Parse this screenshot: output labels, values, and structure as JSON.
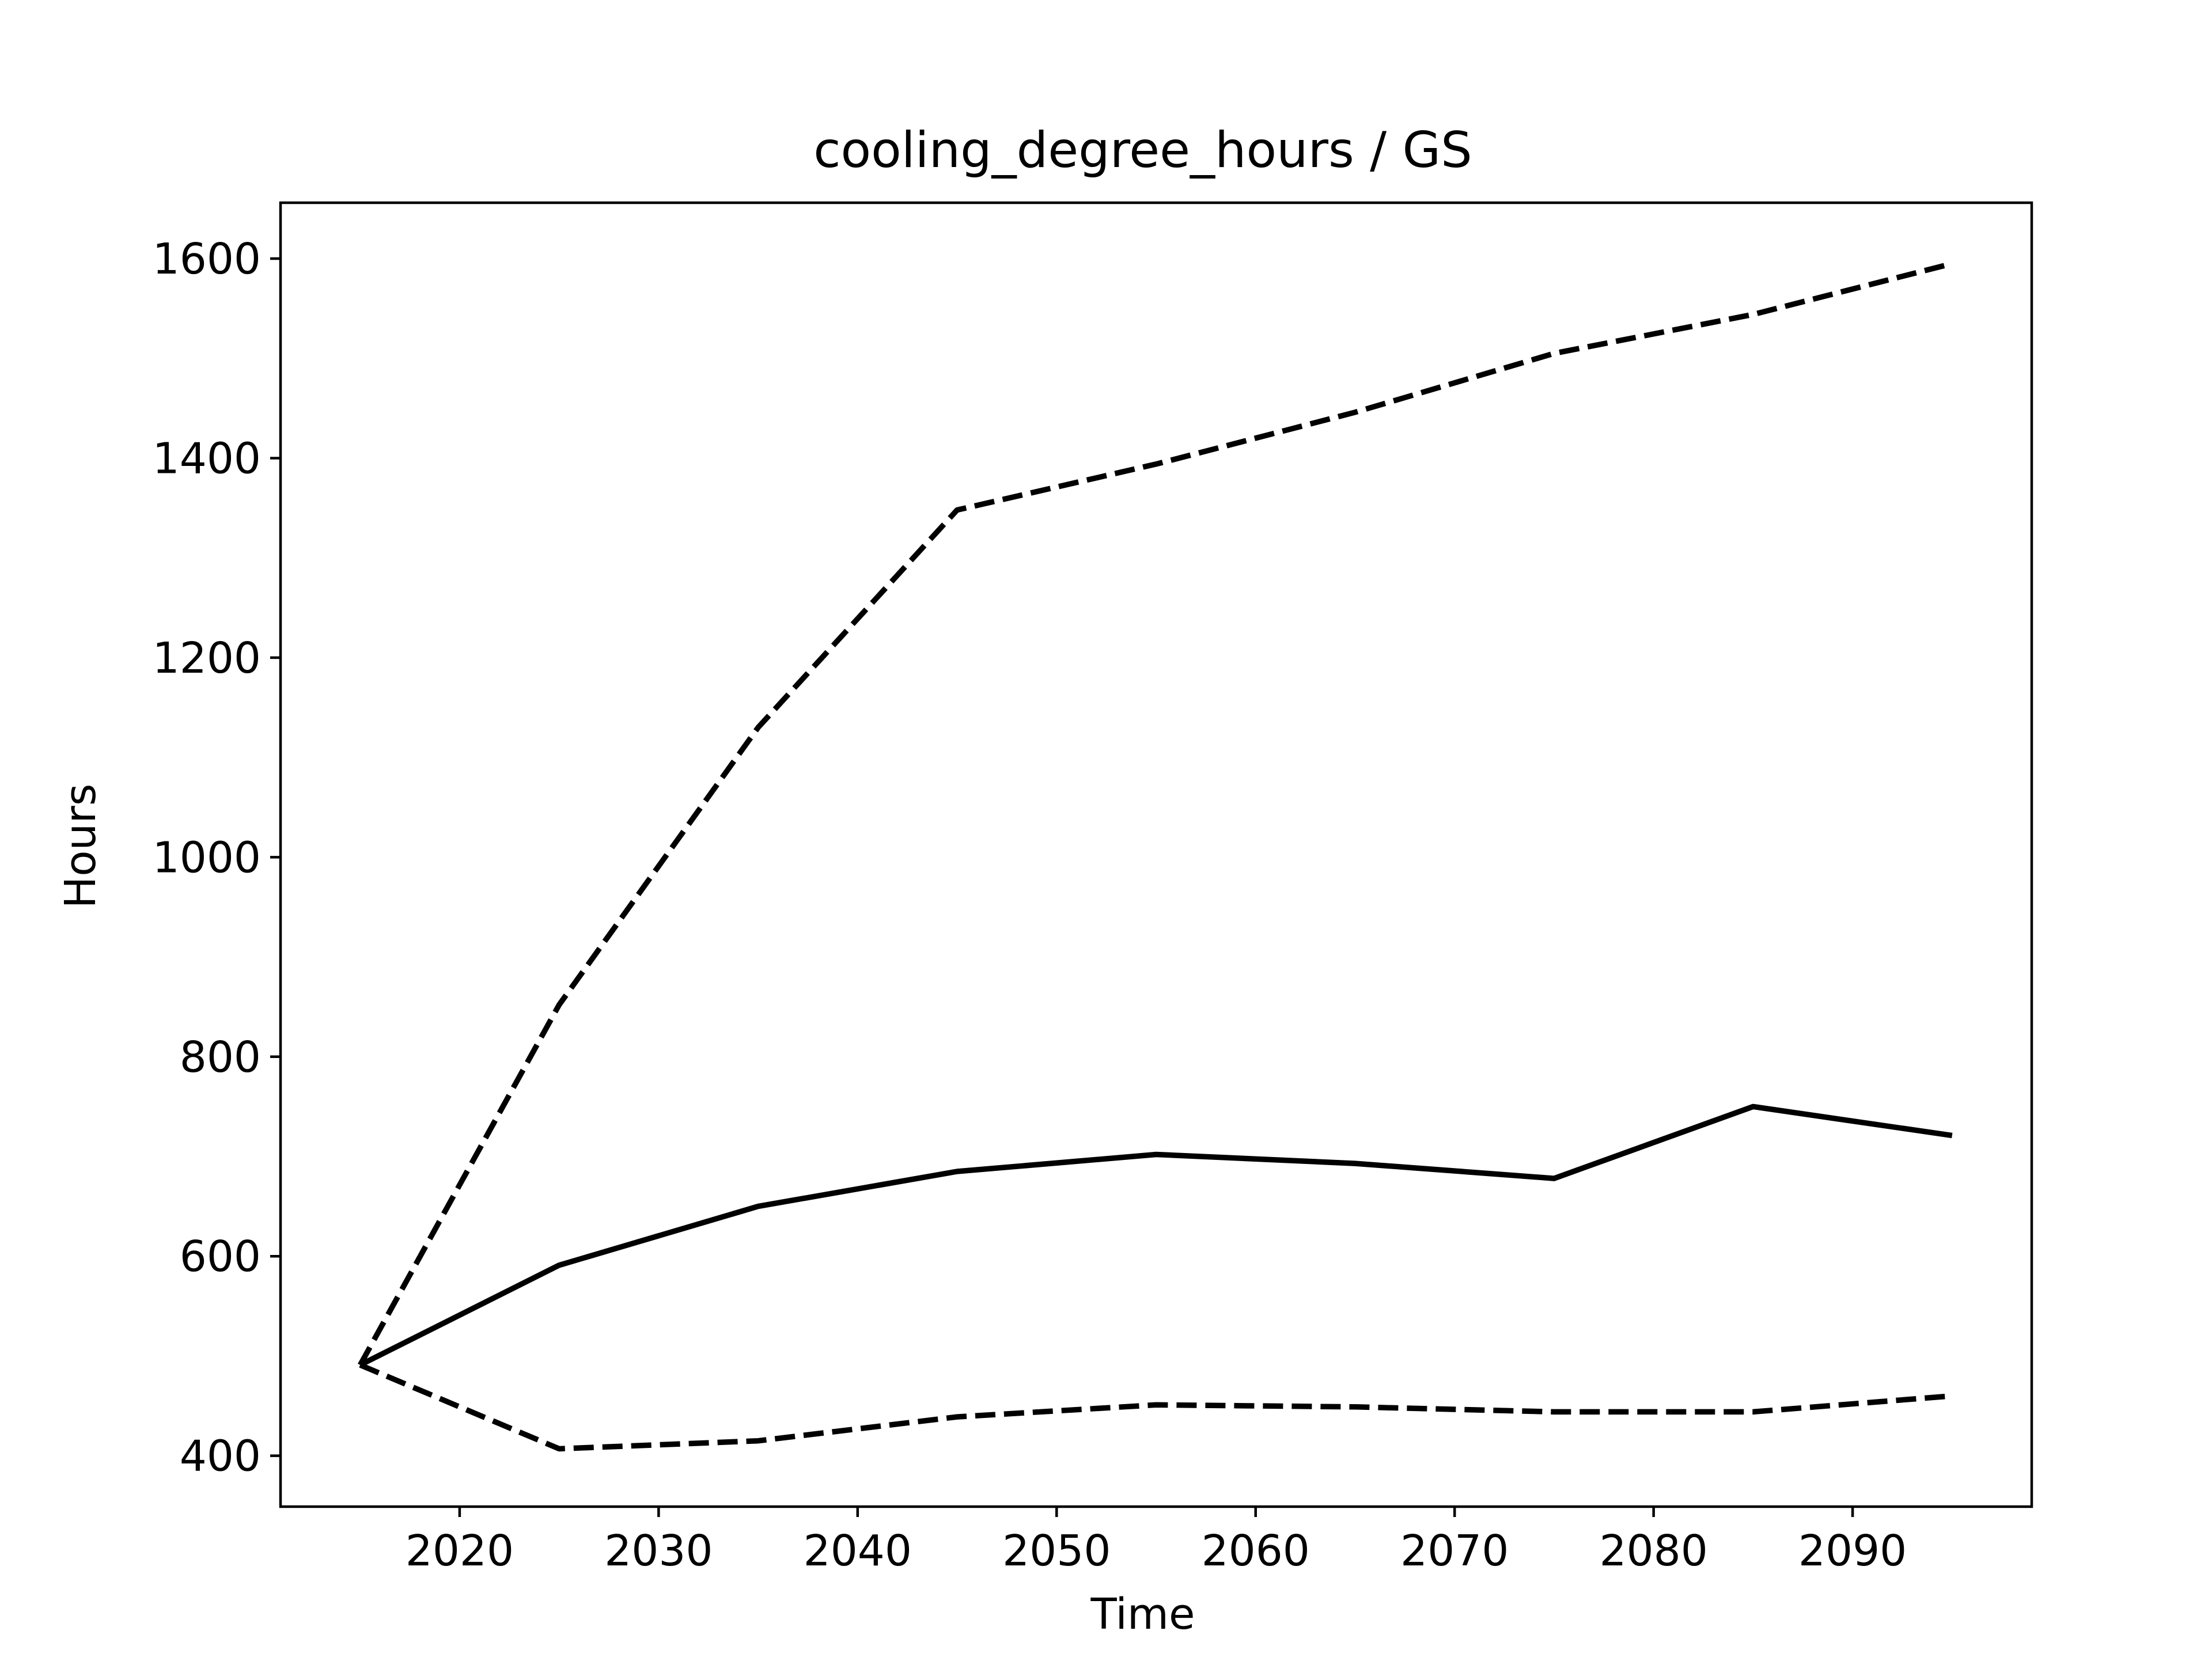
{
  "chart_data": {
    "type": "line",
    "title": "cooling_degree_hours / GS",
    "xlabel": "Time",
    "ylabel": "Hours",
    "x": [
      2015,
      2025,
      2035,
      2045,
      2055,
      2065,
      2075,
      2085,
      2095
    ],
    "xlim": [
      2011,
      2099
    ],
    "ylim": [
      349,
      1656
    ],
    "xticks": [
      2020,
      2030,
      2040,
      2050,
      2060,
      2070,
      2080,
      2090
    ],
    "yticks": [
      400,
      600,
      800,
      1000,
      1200,
      1400,
      1600
    ],
    "grid": false,
    "series": [
      {
        "style": "solid",
        "color": "#000000",
        "values": [
          491,
          591,
          650,
          685,
          702,
          693,
          678,
          750,
          721
        ]
      },
      {
        "style": "dashed",
        "color": "#000000",
        "values": [
          491,
          852,
          1130,
          1348,
          1394,
          1446,
          1505,
          1544,
          1595
        ]
      },
      {
        "style": "dashed",
        "color": "#000000",
        "values": [
          491,
          407,
          415,
          439,
          451,
          449,
          444,
          444,
          460
        ]
      }
    ]
  }
}
